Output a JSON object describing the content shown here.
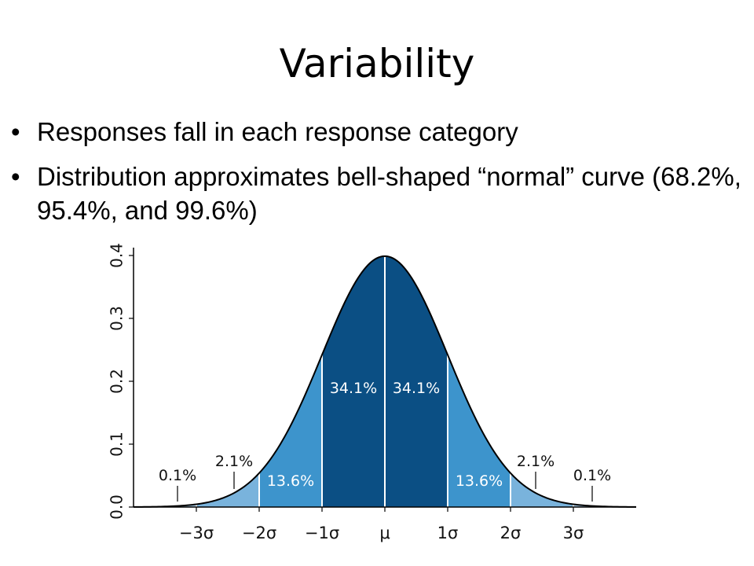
{
  "slide": {
    "title": "Variability",
    "bullets": [
      "Responses fall in each response category",
      "Distribution approximates bell-shaped “normal” curve (68.2%, 95.4%, and 99.6%)"
    ],
    "bullet_glyph": "•"
  },
  "chart_data": {
    "type": "area",
    "distribution": "normal",
    "mean": 0,
    "sd": 1,
    "x_tick_labels": [
      "−3σ",
      "−2σ",
      "−1σ",
      "μ",
      "1σ",
      "2σ",
      "3σ"
    ],
    "x_ticks": [
      -3,
      -2,
      -1,
      0,
      1,
      2,
      3
    ],
    "y_tick_labels": [
      "0.0",
      "0.1",
      "0.2",
      "0.3",
      "0.4"
    ],
    "y_ticks": [
      0,
      0.1,
      0.2,
      0.3,
      0.4
    ],
    "xlim": [
      -4,
      4
    ],
    "ylim": [
      0,
      0.4
    ],
    "bands": [
      {
        "from": -1,
        "to": 0,
        "percent": "34.1%",
        "color": "#0b4f84"
      },
      {
        "from": 0,
        "to": 1,
        "percent": "34.1%",
        "color": "#0b4f84"
      },
      {
        "from": -2,
        "to": -1,
        "percent": "13.6%",
        "color": "#3d94cc"
      },
      {
        "from": 1,
        "to": 2,
        "percent": "13.6%",
        "color": "#3d94cc"
      },
      {
        "from": -3,
        "to": -2,
        "percent": "2.1%",
        "color": "#79b3dc"
      },
      {
        "from": 2,
        "to": 3,
        "percent": "2.1%",
        "color": "#79b3dc"
      },
      {
        "from": -4,
        "to": -3,
        "percent": "0.1%",
        "color": "#a7cde8"
      },
      {
        "from": 3,
        "to": 4,
        "percent": "0.1%",
        "color": "#a7cde8"
      }
    ],
    "title": "",
    "xlabel": "",
    "ylabel": ""
  }
}
